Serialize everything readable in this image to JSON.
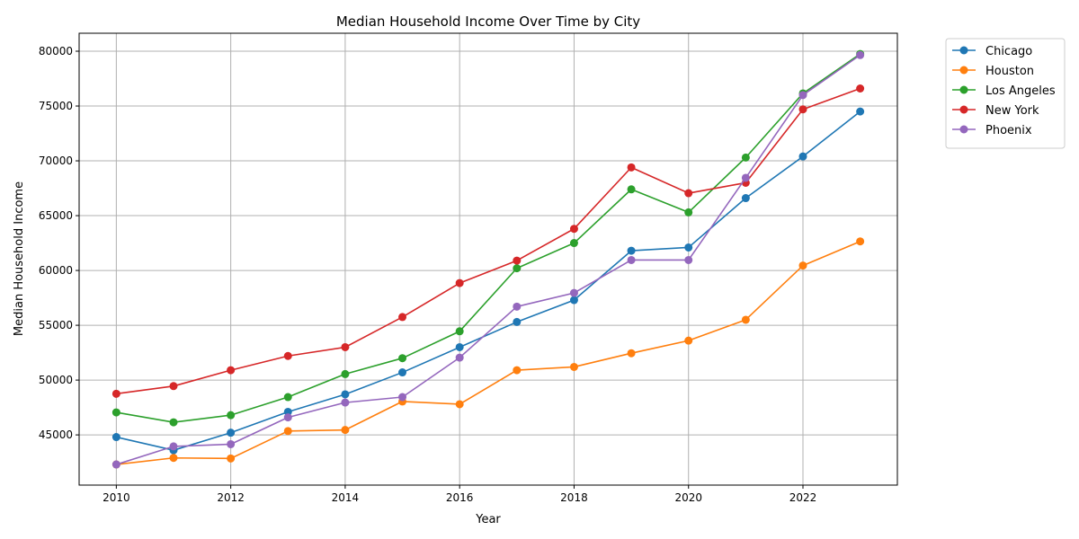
{
  "chart_data": {
    "type": "line",
    "title": "Median Household Income Over Time by City",
    "xlabel": "Year",
    "ylabel": "Median Household Income",
    "x": [
      2010,
      2011,
      2012,
      2013,
      2014,
      2015,
      2016,
      2017,
      2018,
      2019,
      2020,
      2021,
      2022,
      2023
    ],
    "xlim": [
      2009.35,
      2023.65
    ],
    "ylim": [
      40420,
      81640
    ],
    "xticks": [
      2010,
      2012,
      2014,
      2016,
      2018,
      2020,
      2022
    ],
    "yticks": [
      45000,
      50000,
      55000,
      60000,
      65000,
      70000,
      75000,
      80000
    ],
    "grid": true,
    "legend_position": "outside top-right",
    "series": [
      {
        "name": "Chicago",
        "color": "#1f77b4",
        "values": [
          44800,
          43600,
          45200,
          47100,
          48700,
          50700,
          53000,
          55300,
          57300,
          61800,
          62100,
          66600,
          70400,
          74500
        ]
      },
      {
        "name": "Houston",
        "color": "#ff7f0e",
        "values": [
          42300,
          42900,
          42850,
          45350,
          45450,
          48050,
          47800,
          50900,
          51200,
          52450,
          53600,
          55500,
          60450,
          62650
        ]
      },
      {
        "name": "Los Angeles",
        "color": "#2ca02c",
        "values": [
          47050,
          46150,
          46800,
          48450,
          50550,
          52000,
          54450,
          60200,
          62500,
          67400,
          65300,
          70300,
          76150,
          79750
        ]
      },
      {
        "name": "New York",
        "color": "#d62728",
        "values": [
          48750,
          49450,
          50900,
          52200,
          53000,
          55750,
          58850,
          60900,
          63800,
          69400,
          67050,
          68000,
          74700,
          76600
        ]
      },
      {
        "name": "Phoenix",
        "color": "#9467bd",
        "values": [
          42300,
          43950,
          44150,
          46600,
          47950,
          48450,
          52050,
          56700,
          57950,
          60950,
          60950,
          68450,
          76000,
          79650
        ]
      }
    ]
  }
}
